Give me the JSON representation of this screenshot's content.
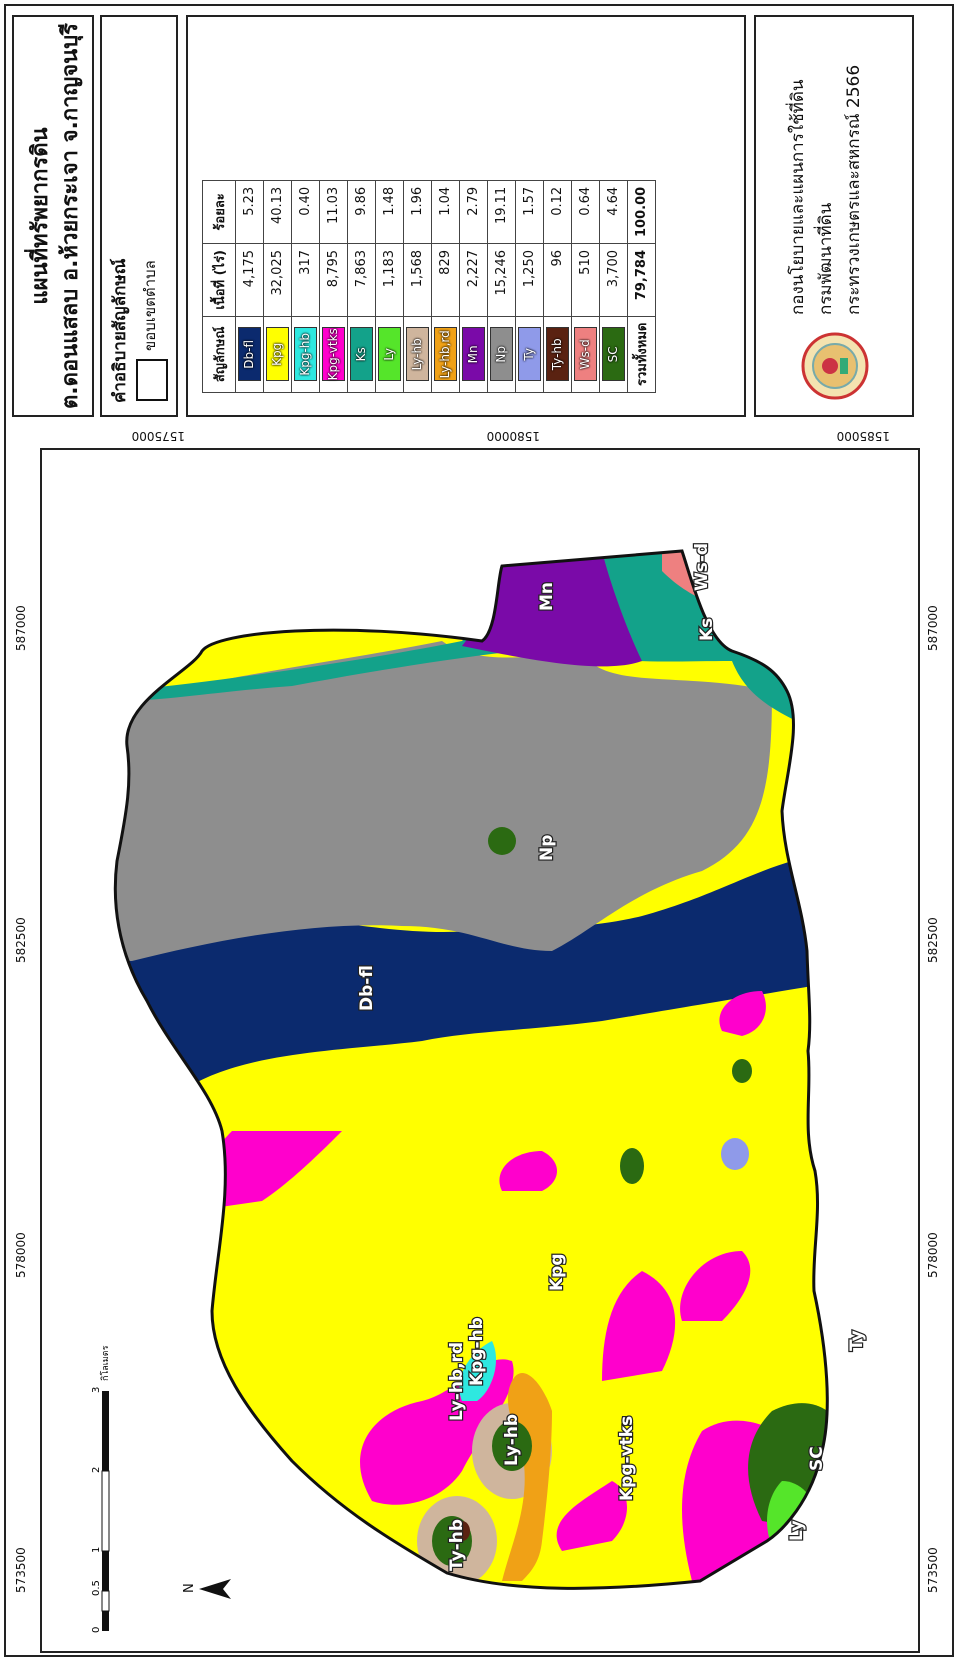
{
  "map": {
    "coords_top": [
      "573500",
      "578000",
      "582500",
      "587000"
    ],
    "coords_side": [
      "1585000",
      "1580000",
      "1575000"
    ],
    "labels": [
      "Kpg",
      "Db-fl",
      "Np",
      "Ks",
      "Ws-d",
      "Mn",
      "Ty",
      "SC",
      "Ly",
      "Ly-hb",
      "Kpg-vtks",
      "Ty-hb",
      "Ly-hb,rd",
      "Kpg-hb"
    ],
    "north": "N",
    "scale_ticks": [
      "0",
      "0.5",
      "1",
      "2",
      "3"
    ],
    "scale_unit": "กิโลเมตร"
  },
  "title": {
    "line1": "แผนที่ทรัพยากรดิน",
    "line2": "ต.ดอนแสลบ อ.ห้วยกระเจา จ.กาญจนบุรี"
  },
  "legend_box": {
    "heading": "คำอธิบายสัญลักษณ์",
    "boundary_label": "ขอบเขตตำบล"
  },
  "table": {
    "headers": [
      "สัญลักษณ์",
      "เนื้อที่ (ไร่)",
      "ร้อยละ"
    ],
    "rows": [
      {
        "code": "Db-fl",
        "area": "4,175",
        "pct": "5.23",
        "color": "#0b2a6e"
      },
      {
        "code": "Kpg",
        "area": "32,025",
        "pct": "40.13",
        "color": "#ffff00"
      },
      {
        "code": "Kpg-hb",
        "area": "317",
        "pct": "0.40",
        "color": "#2ee8e0"
      },
      {
        "code": "Kpg-vtks",
        "area": "8,795",
        "pct": "11.03",
        "color": "#ff00cc"
      },
      {
        "code": "Ks",
        "area": "7,863",
        "pct": "9.86",
        "color": "#13a28a"
      },
      {
        "code": "Ly",
        "area": "1,183",
        "pct": "1.48",
        "color": "#55e52a"
      },
      {
        "code": "Ly-hb",
        "area": "1,568",
        "pct": "1.96",
        "color": "#cfb59d"
      },
      {
        "code": "Ly-hb,rd",
        "area": "829",
        "pct": "1.04",
        "color": "#f0a116"
      },
      {
        "code": "Mn",
        "area": "2,227",
        "pct": "2.79",
        "color": "#7a0aa8"
      },
      {
        "code": "Np",
        "area": "15,246",
        "pct": "19.11",
        "color": "#8e8e8e"
      },
      {
        "code": "Ty",
        "area": "1,250",
        "pct": "1.57",
        "color": "#8f9ae9"
      },
      {
        "code": "Ty-hb",
        "area": "96",
        "pct": "0.12",
        "color": "#5a2211"
      },
      {
        "code": "Ws-d",
        "area": "510",
        "pct": "0.64",
        "color": "#ee8080"
      },
      {
        "code": "SC",
        "area": "3,700",
        "pct": "4.64",
        "color": "#2b6a12"
      }
    ],
    "total_label": "รวมทั้งหมด",
    "total_area": "79,784",
    "total_pct": "100.00"
  },
  "agency": {
    "line1": "กองนโยบายและแผนการใช้ที่ดิน",
    "line2": "กรมพัฒนาที่ดิน",
    "line3": "กระทรวงเกษตรและสหกรณ์ 2566"
  }
}
